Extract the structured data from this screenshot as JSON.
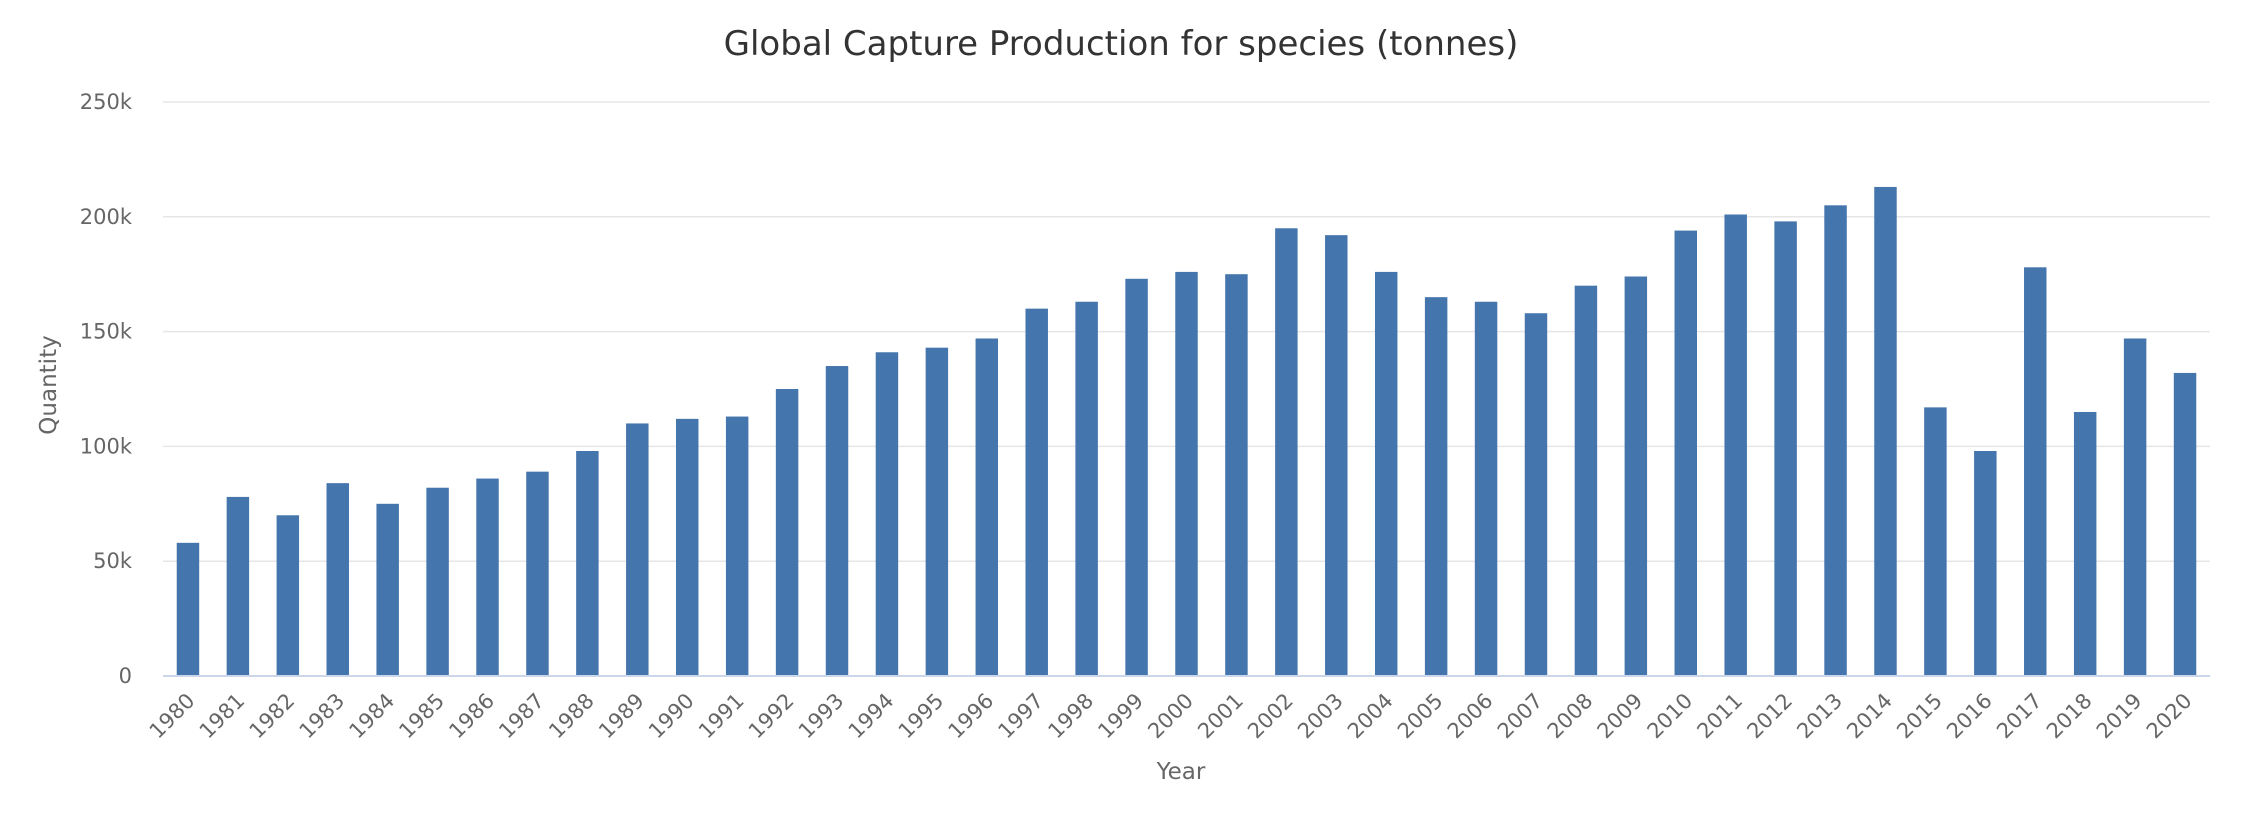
{
  "chart_data": {
    "type": "bar",
    "title": "Global Capture Production for species (tonnes)",
    "xlabel": "Year",
    "ylabel": "Quantity",
    "ylim": [
      0,
      250000
    ],
    "y_ticks": [
      "0",
      "50k",
      "100k",
      "150k",
      "200k",
      "250k"
    ],
    "grid": true,
    "legend": "none",
    "bar_color": "#4575ad",
    "categories": [
      "1980",
      "1981",
      "1982",
      "1983",
      "1984",
      "1985",
      "1986",
      "1987",
      "1988",
      "1989",
      "1990",
      "1991",
      "1992",
      "1993",
      "1994",
      "1995",
      "1996",
      "1997",
      "1998",
      "1999",
      "2000",
      "2001",
      "2002",
      "2003",
      "2004",
      "2005",
      "2006",
      "2007",
      "2008",
      "2009",
      "2010",
      "2011",
      "2012",
      "2013",
      "2014",
      "2015",
      "2016",
      "2017",
      "2018",
      "2019",
      "2020"
    ],
    "values": [
      58000,
      78000,
      70000,
      84000,
      75000,
      82000,
      86000,
      89000,
      98000,
      110000,
      112000,
      113000,
      125000,
      135000,
      141000,
      143000,
      147000,
      160000,
      163000,
      173000,
      176000,
      175000,
      195000,
      192000,
      176000,
      165000,
      163000,
      158000,
      170000,
      174000,
      194000,
      201000,
      198000,
      205000,
      213000,
      117000,
      98000,
      178000,
      115000,
      147000,
      132000
    ]
  }
}
